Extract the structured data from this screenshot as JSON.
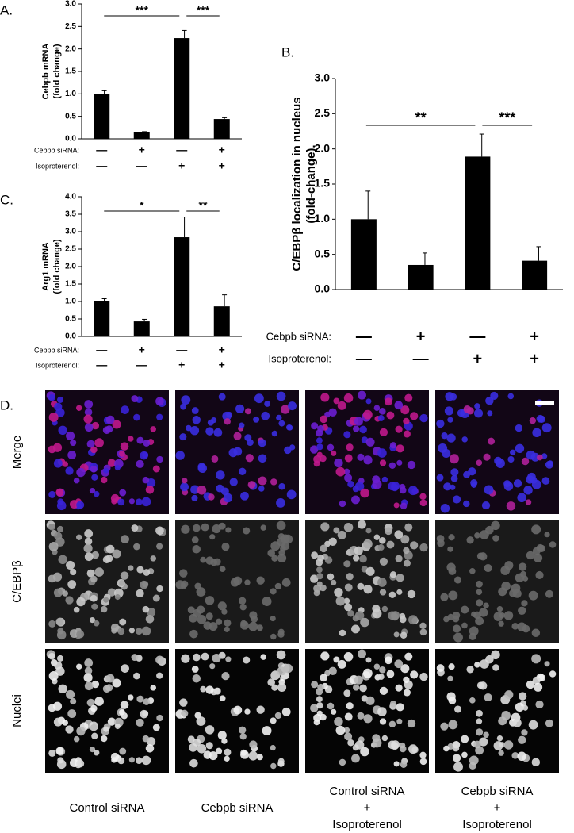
{
  "chart_data": [
    {
      "type": "bar",
      "label": "A.",
      "ylabel": [
        "Cebpb mRNA",
        "(fold change)"
      ],
      "categories": [
        null,
        null,
        null,
        null
      ],
      "values": [
        1.0,
        0.15,
        2.24,
        0.44
      ],
      "errors": [
        0.07,
        0.01,
        0.17,
        0.03
      ],
      "color": "#000000",
      "ylim": [
        0,
        3
      ],
      "yticks": [
        {
          "value": 0,
          "label": "0.0"
        },
        {
          "value": 0.5,
          "label": "0.5"
        },
        {
          "value": 1,
          "label": "1.0"
        },
        {
          "value": 1.5,
          "label": "1.5"
        },
        {
          "value": 2,
          "label": "2.0"
        },
        {
          "value": 2.5,
          "label": "2.5"
        },
        {
          "value": 3,
          "label": "3.0"
        }
      ],
      "significance": [
        {
          "from": 0,
          "to": 2,
          "text": "***"
        },
        {
          "from": 2,
          "to": 3,
          "text": "***"
        }
      ],
      "conditions": [
        {
          "label": "Cebpb siRNA:",
          "signs": [
            "—",
            "+",
            "—",
            "+"
          ]
        },
        {
          "label": "Isoproterenol:",
          "signs": [
            "—",
            "—",
            "+",
            "+"
          ]
        }
      ]
    },
    {
      "type": "bar",
      "label": "B.",
      "ylabel": [
        "C/EBPβ localization in nucleus",
        "(fold-change)."
      ],
      "categories": [
        null,
        null,
        null,
        null
      ],
      "values": [
        1.0,
        0.35,
        1.89,
        0.41
      ],
      "errors": [
        0.4,
        0.17,
        0.32,
        0.2
      ],
      "color": "#000000",
      "ylim": [
        0,
        3
      ],
      "yticks": [
        {
          "value": 0,
          "label": "0.0"
        },
        {
          "value": 0.5,
          "label": "0.5"
        },
        {
          "value": 1,
          "label": "1.0"
        },
        {
          "value": 1.5,
          "label": "1.5"
        },
        {
          "value": 2,
          "label": "2.0"
        },
        {
          "value": 2.5,
          "label": "2.5"
        },
        {
          "value": 3,
          "label": "3.0"
        }
      ],
      "significance": [
        {
          "from": 0,
          "to": 2,
          "text": "**"
        },
        {
          "from": 2,
          "to": 3,
          "text": "***"
        }
      ],
      "conditions": [
        {
          "label": "Cebpb siRNA:",
          "signs": [
            "—",
            "+",
            "—",
            "+"
          ]
        },
        {
          "label": "Isoproterenol:",
          "signs": [
            "—",
            "—",
            "+",
            "+"
          ]
        }
      ]
    },
    {
      "type": "bar",
      "label": "C.",
      "ylabel": [
        "Arg1 mRNA",
        "(fold change)"
      ],
      "categories": [
        null,
        null,
        null,
        null
      ],
      "values": [
        1.0,
        0.43,
        2.84,
        0.86
      ],
      "errors": [
        0.08,
        0.06,
        0.58,
        0.33
      ],
      "color": "#000000",
      "ylim": [
        0,
        4
      ],
      "yticks": [
        {
          "value": 0,
          "label": "0.0"
        },
        {
          "value": 0.5,
          "label": "0.5"
        },
        {
          "value": 1,
          "label": "1.0"
        },
        {
          "value": 1.5,
          "label": "1.5"
        },
        {
          "value": 2,
          "label": "2.0"
        },
        {
          "value": 2.5,
          "label": "2.5"
        },
        {
          "value": 3,
          "label": "3.0"
        },
        {
          "value": 3.5,
          "label": "3.5"
        },
        {
          "value": 4,
          "label": "4.0"
        }
      ],
      "significance": [
        {
          "from": 0,
          "to": 2,
          "text": "*"
        },
        {
          "from": 2,
          "to": 3,
          "text": "**"
        }
      ],
      "conditions": [
        {
          "label": "Cebpb siRNA:",
          "signs": [
            "—",
            "+",
            "—",
            "+"
          ]
        },
        {
          "label": "Isoproterenol:",
          "signs": [
            "—",
            "—",
            "+",
            "+"
          ]
        }
      ]
    }
  ],
  "panel_d": {
    "label": "D.",
    "rows": [
      "Merge",
      "C/EBPβ",
      "Nuclei"
    ],
    "columns": [
      [
        "Control siRNA"
      ],
      [
        "Cebpb siRNA"
      ],
      [
        "Control siRNA",
        "+",
        "Isoproterenol"
      ],
      [
        "Cebpb siRNA",
        "+",
        "Isoproterenol"
      ]
    ]
  }
}
